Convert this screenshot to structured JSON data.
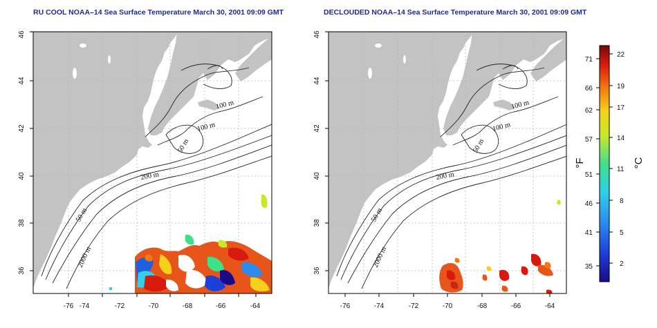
{
  "panels": [
    {
      "title": "RU COOL NOAA–14 Sea Surface Temperature March 30, 2001 09:09 GMT",
      "x_ticks": [
        "-76",
        "-74",
        "-72",
        "-70",
        "-68",
        "-66",
        "-64"
      ],
      "y_ticks": [
        "46",
        "44",
        "42",
        "40",
        "38",
        "36"
      ],
      "contour_labels": [
        "100 m",
        "100 m",
        "50 m",
        "200 m",
        "50 m",
        "2000 m"
      ]
    },
    {
      "title": "DECLOUDED NOAA–14 Sea Surface Temperature March 30, 2001 09:09 GMT",
      "x_ticks": [
        "-76",
        "-74",
        "-72",
        "-70",
        "-68",
        "-66",
        "-64"
      ],
      "y_ticks": [
        "46",
        "44",
        "42",
        "40",
        "38",
        "36"
      ],
      "contour_labels": [
        "100 m",
        "100 m",
        "50 m",
        "200 m",
        "50 m",
        "2000 m"
      ]
    }
  ],
  "colorbar": {
    "fahrenheit_ticks": [
      "71",
      "66",
      "62",
      "57",
      "51",
      "46",
      "41",
      "35"
    ],
    "celsius_ticks": [
      "22",
      "19",
      "17",
      "14",
      "11",
      "8",
      "5",
      "2"
    ],
    "unit_f": "°F",
    "unit_c": "°C"
  },
  "colors": {
    "land": "#c3c3c3",
    "title": "#1f2a8c"
  }
}
